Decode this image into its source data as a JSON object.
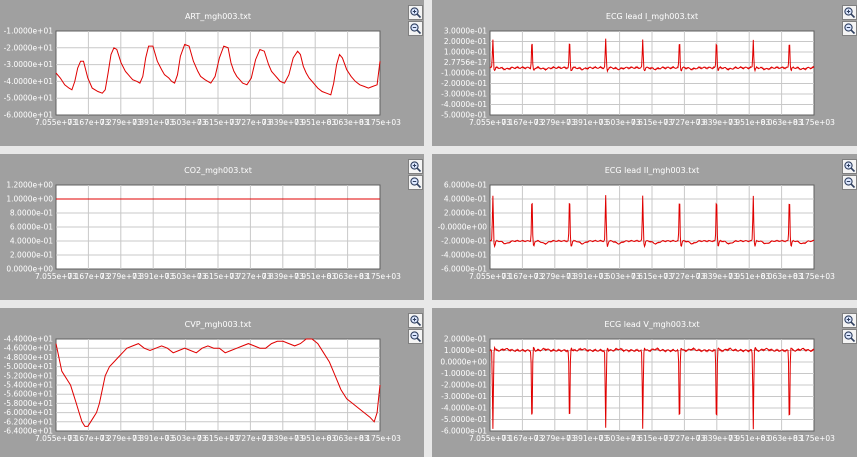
{
  "colors": {
    "background": "#a0a0a0",
    "plot_bg": "#ffffff",
    "grid": "#c8c8c8",
    "trace": "#e00000"
  },
  "icons": {
    "zoom_in": "zoom-in-icon",
    "zoom_out": "zoom-out-icon"
  },
  "chart_data": [
    {
      "type": "line",
      "title": "ART_mgh003.txt",
      "xticks": [
        "7.055e+03",
        "7.167e+03",
        "7.279e+03",
        "7.391e+03",
        "7.503e+03",
        "7.615e+03",
        "7.727e+03",
        "7.839e+03",
        "7.951e+03",
        "8.063e+03",
        "8.175e+03"
      ],
      "yticks": [
        "-1.0000e+01",
        "-2.0000e+01",
        "-3.0000e+01",
        "-4.0000e+01",
        "-5.0000e+01",
        "-6.0000e+01"
      ],
      "xlim": [
        7055,
        8175
      ],
      "ylim": [
        -60,
        -10
      ],
      "grid": true,
      "series": [
        {
          "x": [
            7055,
            7070,
            7085,
            7100,
            7110,
            7120,
            7130,
            7140,
            7150,
            7165,
            7180,
            7200,
            7215,
            7225,
            7235,
            7245,
            7255,
            7265,
            7280,
            7295,
            7310,
            7320,
            7335,
            7345,
            7355,
            7365,
            7375,
            7390,
            7405,
            7420,
            7430,
            7445,
            7455,
            7465,
            7475,
            7485,
            7500,
            7515,
            7530,
            7545,
            7555,
            7570,
            7580,
            7590,
            7605,
            7620,
            7635,
            7650,
            7660,
            7670,
            7680,
            7690,
            7700,
            7715,
            7730,
            7745,
            7760,
            7775,
            7790,
            7800,
            7810,
            7820,
            7830,
            7845,
            7860,
            7875,
            7890,
            7900,
            7910,
            7920,
            7930,
            7945,
            7960,
            7975,
            7990,
            8005,
            8015,
            8025,
            8035,
            8045,
            8060,
            8075,
            8090,
            8105,
            8120,
            8135,
            8150,
            8165,
            8175
          ],
          "y": [
            -35,
            -38,
            -42,
            -44,
            -45,
            -40,
            -32,
            -28,
            -28,
            -38,
            -44,
            -46,
            -47,
            -45,
            -35,
            -24,
            -20,
            -21,
            -29,
            -34,
            -37,
            -39,
            -40,
            -41,
            -37,
            -26,
            -19,
            -19,
            -28,
            -33,
            -36,
            -38,
            -40,
            -41,
            -36,
            -25,
            -18,
            -19,
            -28,
            -34,
            -37,
            -39,
            -40,
            -41,
            -37,
            -26,
            -19,
            -20,
            -29,
            -34,
            -37,
            -39,
            -41,
            -42,
            -38,
            -27,
            -21,
            -22,
            -30,
            -34,
            -36,
            -38,
            -40,
            -41,
            -36,
            -26,
            -22,
            -24,
            -31,
            -35,
            -38,
            -41,
            -44,
            -46,
            -47,
            -48,
            -41,
            -30,
            -24,
            -26,
            -33,
            -37,
            -40,
            -42,
            -43,
            -44,
            -43,
            -42,
            -28
          ]
        }
      ]
    },
    {
      "type": "line",
      "title": "ECG lead I_mgh003.txt",
      "xticks": [
        "7.055e+03",
        "7.167e+03",
        "7.279e+03",
        "7.391e+03",
        "7.503e+03",
        "7.615e+03",
        "7.727e+03",
        "7.839e+03",
        "7.951e+03",
        "8.063e+03",
        "8.175e+03"
      ],
      "yticks": [
        "3.0000e-01",
        "2.0000e-01",
        "1.0000e-01",
        "2.7756e-17",
        "-1.0000e-01",
        "-2.0000e-01",
        "-3.0000e-01",
        "-4.0000e-01",
        "-5.0000e-01"
      ],
      "xlim": [
        7055,
        8175
      ],
      "ylim": [
        -0.5,
        0.3
      ],
      "grid": true,
      "series": [
        {
          "beats": [
            7065,
            7200,
            7330,
            7455,
            7583,
            7710,
            7838,
            7965,
            8090
          ],
          "baseline": -0.05,
          "peak": 0.22,
          "trough": -0.1
        }
      ]
    },
    {
      "type": "line",
      "title": "CO2_mgh003.txt",
      "xticks": [
        "7.055e+03",
        "7.167e+03",
        "7.279e+03",
        "7.391e+03",
        "7.503e+03",
        "7.615e+03",
        "7.727e+03",
        "7.839e+03",
        "7.951e+03",
        "8.063e+03",
        "8.175e+03"
      ],
      "yticks": [
        "1.2000e+00",
        "1.0000e+00",
        "8.0000e-01",
        "6.0000e-01",
        "4.0000e-01",
        "2.0000e-01",
        "0.0000e+00"
      ],
      "xlim": [
        7055,
        8175
      ],
      "ylim": [
        0,
        1.2
      ],
      "grid": true,
      "series": [
        {
          "x": [
            7055,
            8175
          ],
          "y": [
            1.0,
            1.0
          ]
        }
      ]
    },
    {
      "type": "line",
      "title": "ECG lead II_mgh003.txt",
      "xticks": [
        "7.055e+03",
        "7.167e+03",
        "7.279e+03",
        "7.391e+03",
        "7.503e+03",
        "7.615e+03",
        "7.727e+03",
        "7.839e+03",
        "7.951e+03",
        "8.063e+03",
        "8.175e+03"
      ],
      "yticks": [
        "6.0000e-01",
        "4.0000e-01",
        "2.0000e-01",
        "-0.0000e+00",
        "-2.0000e-01",
        "-4.0000e-01",
        "-6.0000e-01"
      ],
      "xlim": [
        7055,
        8175
      ],
      "ylim": [
        -0.6,
        0.6
      ],
      "grid": true,
      "series": [
        {
          "beats": [
            7065,
            7200,
            7330,
            7455,
            7583,
            7710,
            7838,
            7965,
            8090
          ],
          "baseline": -0.2,
          "peak": 0.45,
          "trough": -0.35
        }
      ]
    },
    {
      "type": "line",
      "title": "CVP_mgh003.txt",
      "xticks": [
        "7.055e+03",
        "7.167e+03",
        "7.279e+03",
        "7.391e+03",
        "7.503e+03",
        "7.615e+03",
        "7.727e+03",
        "7.839e+03",
        "7.951e+03",
        "8.063e+03",
        "8.175e+03"
      ],
      "yticks": [
        "-4.4000e+01",
        "-4.6000e+01",
        "-4.8000e+01",
        "-5.0000e+01",
        "-5.2000e+01",
        "-5.4000e+01",
        "-5.6000e+01",
        "-5.8000e+01",
        "-6.0000e+01",
        "-6.2000e+01",
        "-6.4000e+01"
      ],
      "xlim": [
        7055,
        8175
      ],
      "ylim": [
        -64,
        -44
      ],
      "grid": true,
      "series": [
        {
          "x": [
            7055,
            7065,
            7075,
            7085,
            7095,
            7105,
            7115,
            7125,
            7135,
            7145,
            7155,
            7165,
            7175,
            7185,
            7195,
            7205,
            7215,
            7225,
            7240,
            7255,
            7270,
            7285,
            7300,
            7320,
            7340,
            7360,
            7380,
            7400,
            7420,
            7440,
            7460,
            7480,
            7500,
            7520,
            7540,
            7560,
            7580,
            7600,
            7620,
            7640,
            7660,
            7680,
            7700,
            7720,
            7740,
            7760,
            7780,
            7800,
            7820,
            7840,
            7860,
            7880,
            7900,
            7920,
            7940,
            7960,
            7980,
            8000,
            8020,
            8040,
            8060,
            8080,
            8100,
            8120,
            8140,
            8155,
            8165,
            8175
          ],
          "y": [
            -45,
            -48,
            -51,
            -52,
            -53,
            -54,
            -56,
            -58,
            -60,
            -62,
            -63,
            -63,
            -62,
            -61,
            -60,
            -58,
            -55,
            -52,
            -50,
            -49,
            -48,
            -47,
            -46,
            -45.5,
            -45,
            -46,
            -46.5,
            -46,
            -45.5,
            -46,
            -47,
            -46.5,
            -46,
            -46.5,
            -47,
            -46,
            -45.5,
            -46,
            -46,
            -47,
            -46.5,
            -46,
            -45.5,
            -45,
            -45.5,
            -46,
            -46,
            -45,
            -44.5,
            -44.5,
            -45,
            -45.5,
            -45,
            -44,
            -44,
            -45,
            -47,
            -49,
            -52,
            -55,
            -57,
            -58,
            -59,
            -60,
            -61,
            -62,
            -60,
            -54
          ]
        }
      ]
    },
    {
      "type": "line",
      "title": "ECG lead V_mgh003.txt",
      "xticks": [
        "7.055e+03",
        "7.167e+03",
        "7.279e+03",
        "7.391e+03",
        "7.503e+03",
        "7.615e+03",
        "7.727e+03",
        "7.839e+03",
        "7.951e+03",
        "8.063e+03",
        "8.175e+03"
      ],
      "yticks": [
        "2.0000e-01",
        "1.0000e-01",
        "0.0000e+00",
        "-1.0000e-01",
        "-2.0000e-01",
        "-3.0000e-01",
        "-4.0000e-01",
        "-5.0000e-01",
        "-6.0000e-01"
      ],
      "xlim": [
        7055,
        8175
      ],
      "ylim": [
        -0.6,
        0.2
      ],
      "grid": true,
      "series": [
        {
          "beats": [
            7065,
            7200,
            7330,
            7455,
            7583,
            7710,
            7838,
            7965,
            8090
          ],
          "baseline": 0.1,
          "peak": -0.58,
          "trough": 0.15
        }
      ]
    }
  ]
}
